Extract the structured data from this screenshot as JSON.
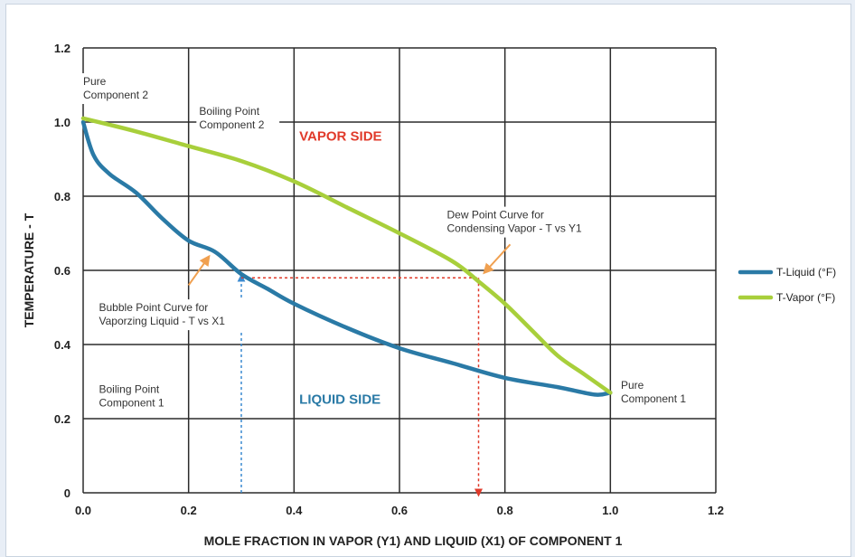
{
  "chart_data": {
    "type": "line",
    "xlabel": "MOLE FRACTION IN VAPOR (Y1) AND LIQUID (X1) OF COMPONENT 1",
    "ylabel": "TEMPERATURE - T",
    "xlim": [
      0,
      1.2
    ],
    "ylim": [
      0,
      1.2
    ],
    "xticks": [
      0,
      0.2,
      0.4,
      0.6,
      0.8,
      1.0,
      1.2
    ],
    "xtick_labels": [
      "0.0",
      "0.2",
      "0.4",
      "0.6",
      "0.8",
      "1.0",
      "1.2"
    ],
    "yticks": [
      0,
      0.2,
      0.4,
      0.6,
      0.8,
      1.0,
      1.2
    ],
    "ytick_labels": [
      "0",
      "0.2",
      "0.4",
      "0.6",
      "0.8",
      "1.0",
      "1.2"
    ],
    "grid": true,
    "legend_position": "right",
    "series": [
      {
        "name": "T-Liquid (°F)",
        "color": "#2a7aa6",
        "x": [
          0,
          0.02,
          0.05,
          0.1,
          0.15,
          0.2,
          0.25,
          0.3,
          0.35,
          0.4,
          0.5,
          0.6,
          0.7,
          0.8,
          0.9,
          0.97,
          1.0
        ],
        "y": [
          1.0,
          0.91,
          0.86,
          0.81,
          0.74,
          0.68,
          0.65,
          0.59,
          0.55,
          0.51,
          0.445,
          0.39,
          0.35,
          0.31,
          0.285,
          0.265,
          0.27
        ]
      },
      {
        "name": "T-Vapor (°F)",
        "color": "#a8cf3b",
        "x": [
          0,
          0.1,
          0.2,
          0.3,
          0.4,
          0.5,
          0.6,
          0.7,
          0.75,
          0.8,
          0.85,
          0.9,
          0.95,
          1.0
        ],
        "y": [
          1.01,
          0.975,
          0.935,
          0.895,
          0.84,
          0.77,
          0.7,
          0.625,
          0.57,
          0.51,
          0.44,
          0.37,
          0.32,
          0.27
        ]
      }
    ],
    "annotations": [
      {
        "lines": [
          "Pure",
          "Component 2"
        ],
        "x": 0.0,
        "y": 1.1
      },
      {
        "lines": [
          "Boiling Point",
          "Component 2"
        ],
        "x": 0.22,
        "y": 1.02
      },
      {
        "lines": [
          "Dew Point Curve for",
          "Condensing Vapor - T vs Y1"
        ],
        "x": 0.69,
        "y": 0.74
      },
      {
        "lines": [
          "Bubble Point Curve for",
          "Vaporzing Liquid - T vs X1"
        ],
        "x": 0.03,
        "y": 0.49
      },
      {
        "lines": [
          "Boiling Point",
          "Component 1"
        ],
        "x": 0.03,
        "y": 0.27
      },
      {
        "lines": [
          "Pure",
          "Component 1"
        ],
        "x": 1.02,
        "y": 0.28
      }
    ],
    "regions": [
      {
        "text": "VAPOR SIDE",
        "x": 0.41,
        "y": 0.95,
        "color": "#e03a2a"
      },
      {
        "text": "LIQUID SIDE",
        "x": 0.41,
        "y": 0.24,
        "color": "#2a7aa6"
      }
    ],
    "guides": [
      {
        "type": "vertical-arrow-up",
        "x": 0.3,
        "y_from": 0,
        "y_to": 0.58,
        "color": "#3a8ad0"
      },
      {
        "type": "horizontal",
        "x_from": 0.3,
        "x_to": 0.75,
        "y": 0.58,
        "color": "#e03a2a"
      },
      {
        "type": "vertical-arrow-down",
        "x": 0.75,
        "y_from": 0.58,
        "y_to": 0,
        "color": "#e03a2a"
      }
    ],
    "pointer_arrows": [
      {
        "from": [
          0.2,
          0.56
        ],
        "to": [
          0.235,
          0.63
        ],
        "color": "#f0a050"
      },
      {
        "from": [
          0.81,
          0.67
        ],
        "to": [
          0.765,
          0.6
        ],
        "color": "#f0a050"
      }
    ]
  }
}
